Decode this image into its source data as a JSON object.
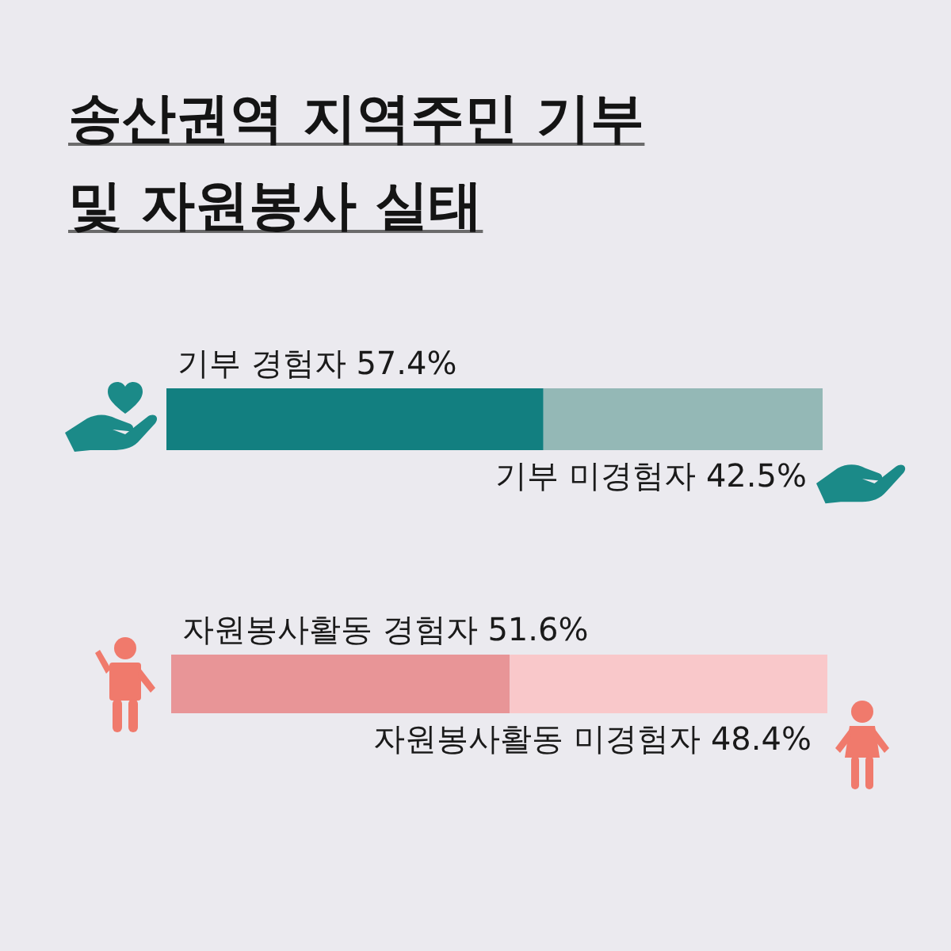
{
  "chart_data": [
    {
      "type": "bar",
      "title": "송산권역 지역주민 기부 및 자원봉사 실태",
      "orientation": "horizontal",
      "stacked": true,
      "categories": [
        null
      ],
      "series": [
        {
          "name": "기부 경험자",
          "color": "#127f80",
          "values": [
            57.4
          ],
          "value_labels": [
            "57.4%"
          ]
        },
        {
          "name": "기부 미경험자",
          "color": "#94b8b6",
          "values": [
            42.5
          ],
          "value_labels": [
            "42.5%"
          ]
        }
      ]
    },
    {
      "type": "bar",
      "orientation": "horizontal",
      "stacked": true,
      "categories": [
        null
      ],
      "series": [
        {
          "name": "자원봉사활동 경험자",
          "color": "#e89597",
          "values": [
            51.6
          ],
          "value_labels": [
            "51.6%"
          ]
        },
        {
          "name": "자원봉사활동 미경험자",
          "color": "#f9c8ca",
          "values": [
            48.4
          ],
          "value_labels": [
            "48.4%"
          ]
        }
      ]
    }
  ]
}
